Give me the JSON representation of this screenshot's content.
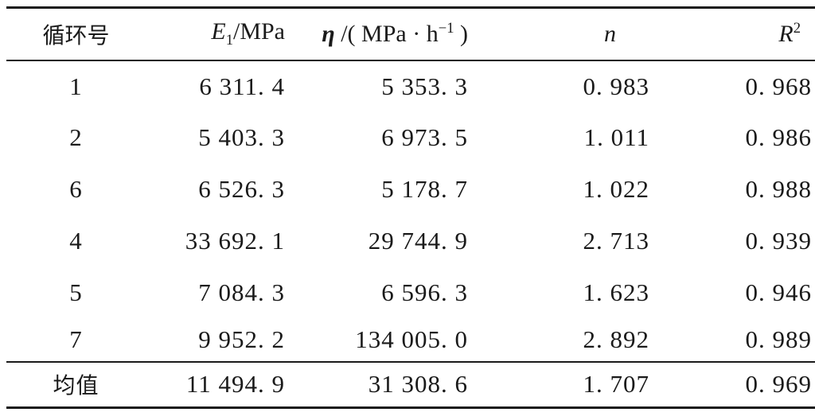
{
  "table": {
    "headers": {
      "cycle": "循环号",
      "e1_symbol": "E",
      "e1_sub": "1",
      "e1_unit": "/MPa",
      "eta_symbol": "η",
      "eta_unit_pre": " /( MPa · h",
      "eta_unit_sup": "−1",
      "eta_unit_post": " )",
      "n": "n",
      "r2_symbol": "R",
      "r2_sup": "2"
    },
    "rows": [
      {
        "cycle": "1",
        "e1": "6 311. 4",
        "eta": "5 353. 3",
        "n": "0. 983",
        "r2": "0. 968"
      },
      {
        "cycle": "2",
        "e1": "5 403. 3",
        "eta": "6 973. 5",
        "n": "1. 011",
        "r2": "0. 986"
      },
      {
        "cycle": "6",
        "e1": "6 526. 3",
        "eta": "5 178. 7",
        "n": "1. 022",
        "r2": "0. 988"
      },
      {
        "cycle": "4",
        "e1": "33 692. 1",
        "eta": "29 744. 9",
        "n": "2. 713",
        "r2": "0. 939"
      },
      {
        "cycle": "5",
        "e1": "7 084. 3",
        "eta": "6 596. 3",
        "n": "1. 623",
        "r2": "0. 946"
      },
      {
        "cycle": "7",
        "e1": "9 952. 2",
        "eta": "134 005. 0",
        "n": "2. 892",
        "r2": "0. 989"
      }
    ],
    "mean": {
      "label": "均值",
      "e1": "11 494. 9",
      "eta": "31 308. 6",
      "n": "1. 707",
      "r2": "0. 969"
    }
  }
}
